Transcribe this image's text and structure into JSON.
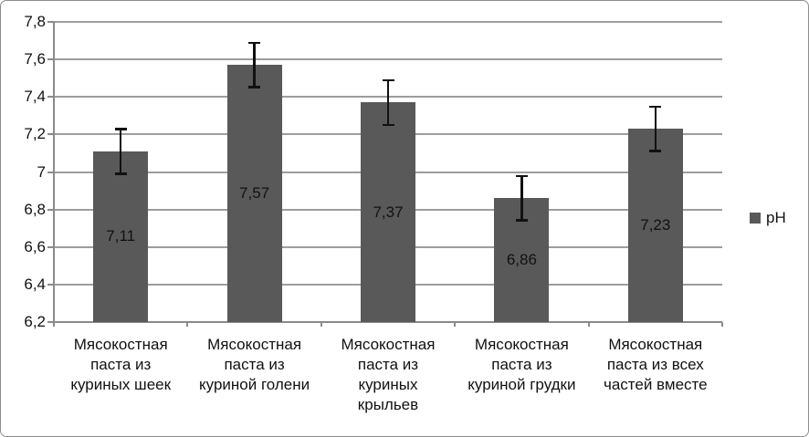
{
  "chart_data": {
    "type": "bar",
    "title": "",
    "xlabel": "",
    "ylabel": "",
    "categories": [
      "Мясокостная паста из куриных шеек",
      "Мясокостная паста из куриной голени",
      "Мясокостная паста из куриных крыльев",
      "Мясокостная паста из куриной грудки",
      "Мясокостная паста из всех частей вместе"
    ],
    "category_lines": [
      [
        "Мясокостная",
        "паста из",
        "куриных шеек"
      ],
      [
        "Мясокостная",
        "паста из",
        "куриной голени"
      ],
      [
        "Мясокостная",
        "паста из",
        "куриных",
        "крыльев"
      ],
      [
        "Мясокостная",
        "паста из",
        "куриной грудки"
      ],
      [
        "Мясокостная",
        "паста из всех",
        "частей вместе"
      ]
    ],
    "series": [
      {
        "name": "pH",
        "values": [
          7.11,
          7.57,
          7.37,
          6.86,
          7.23
        ]
      }
    ],
    "value_labels": [
      "7,11",
      "7,57",
      "7,37",
      "6,86",
      "7,23"
    ],
    "error_bar": 0.12,
    "ylim": [
      6.2,
      7.8
    ],
    "ytick_values": [
      7.8,
      7.6,
      7.4,
      7.2,
      7.0,
      6.8,
      6.6,
      6.4,
      6.2
    ],
    "ytick_labels": [
      "7,8",
      "7,6",
      "7,4",
      "7,2",
      "7",
      "6,8",
      "6,6",
      "6,4",
      "6,2"
    ],
    "grid": true,
    "legend": {
      "label": "pH",
      "position": "right"
    },
    "colors": {
      "bar": "#595959",
      "gridline": "#9d9d9d",
      "axis": "#8a8a8a",
      "error_bar": "#111111",
      "text": "#111111",
      "background": "#ffffff"
    }
  }
}
